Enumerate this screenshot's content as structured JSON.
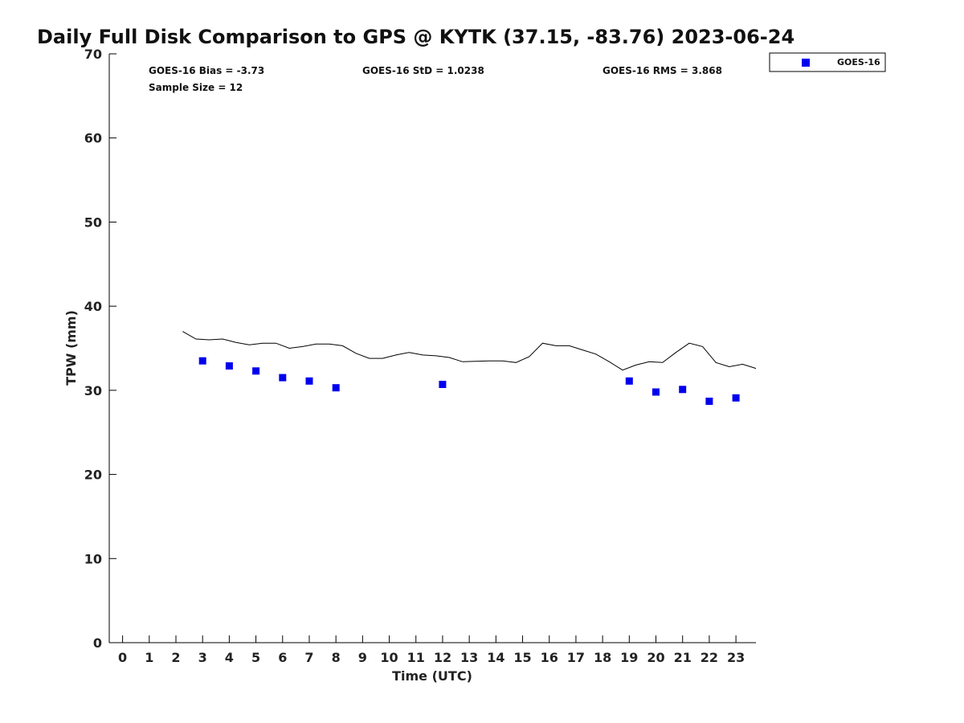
{
  "chart_data": {
    "type": "scatter",
    "title": "Daily Full Disk Comparison to GPS @ KYTK (37.15, -83.76) 2023-06-24",
    "xlabel": "Time (UTC)",
    "ylabel": "TPW (mm)",
    "xlim": [
      -0.5,
      23.75
    ],
    "ylim": [
      0,
      70
    ],
    "xticks": [
      0,
      1,
      2,
      3,
      4,
      5,
      6,
      7,
      8,
      9,
      10,
      11,
      12,
      13,
      14,
      15,
      16,
      17,
      18,
      19,
      20,
      21,
      22,
      23
    ],
    "yticks": [
      0,
      10,
      20,
      30,
      40,
      50,
      60,
      70
    ],
    "grid": false,
    "legend_position": "top-right",
    "stats": {
      "bias": "GOES-16 Bias = -3.73",
      "std": "GOES-16 StD = 1.0238",
      "rms": "GOES-16 RMS = 3.868",
      "sample_size": "Sample Size = 12"
    },
    "series": [
      {
        "name": "GOES-16",
        "type": "scatter",
        "marker": "square",
        "color": "#0000ee",
        "x": [
          3,
          4,
          5,
          6,
          7,
          8,
          12,
          19,
          20,
          21,
          22,
          23
        ],
        "y": [
          33.5,
          32.9,
          32.3,
          31.5,
          31.1,
          30.3,
          30.7,
          31.1,
          29.8,
          30.1,
          28.7,
          29.1
        ]
      },
      {
        "type": "line",
        "color": "#000000",
        "x": [
          2.25,
          2.75,
          3.25,
          3.75,
          4.25,
          4.75,
          5.25,
          5.75,
          6.25,
          6.75,
          7.25,
          7.75,
          8.25,
          8.75,
          9.25,
          9.75,
          10.25,
          10.75,
          11.25,
          11.75,
          12.25,
          12.75,
          13.25,
          13.75,
          14.25,
          14.75,
          15.25,
          15.75,
          16.25,
          16.75,
          17.25,
          17.75,
          18.25,
          18.75,
          19.25,
          19.75,
          20.25,
          20.75,
          21.25,
          21.75,
          22.25,
          22.75,
          23.25,
          23.75
        ],
        "y": [
          37.0,
          36.1,
          36.0,
          36.1,
          35.7,
          35.4,
          35.6,
          35.6,
          35.0,
          35.2,
          35.5,
          35.5,
          35.3,
          34.4,
          33.8,
          33.8,
          34.2,
          34.5,
          34.2,
          34.1,
          33.9,
          33.4,
          33.45,
          33.5,
          33.5,
          33.3,
          34.0,
          35.6,
          35.3,
          35.3,
          34.8,
          34.3,
          33.4,
          32.4,
          33.0,
          33.4,
          33.3,
          34.5,
          35.6,
          35.2,
          33.3,
          32.8,
          33.1,
          32.6
        ]
      }
    ]
  }
}
